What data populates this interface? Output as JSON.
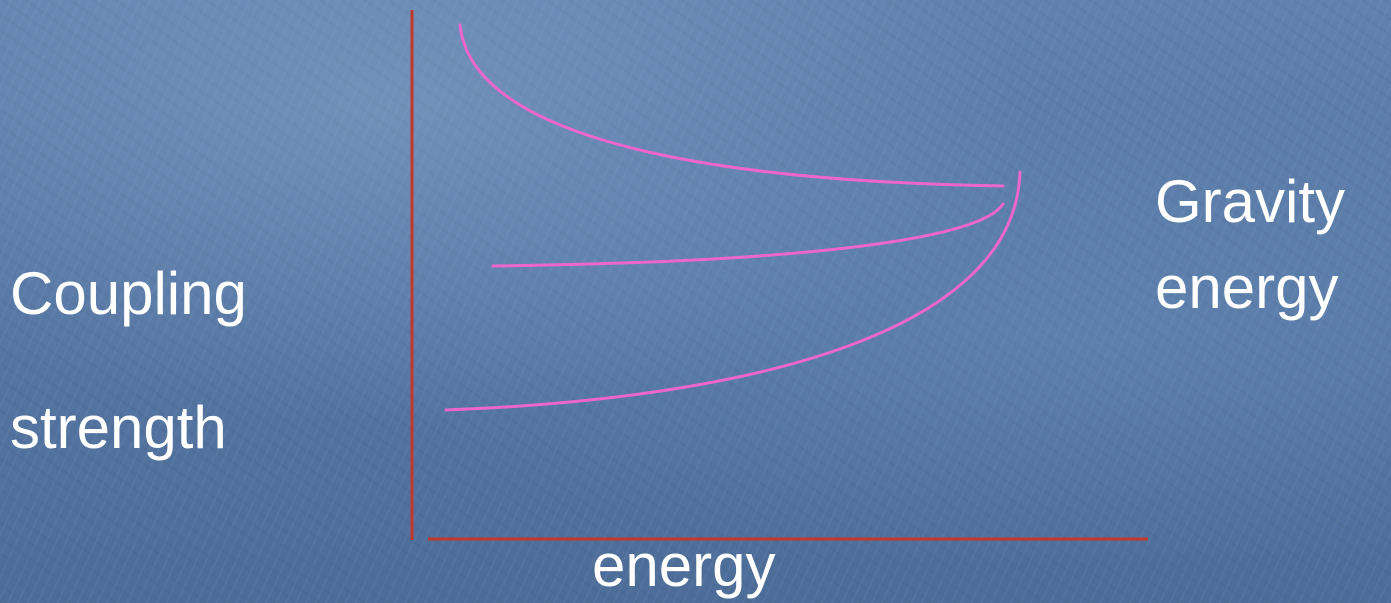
{
  "labels": {
    "coupling": "Coupling",
    "strength": "strength",
    "x_axis": "energy",
    "gravity": "Gravity",
    "gravity_energy": "energy"
  },
  "colors": {
    "axis": "#c0392b",
    "curve": "#ee66cc",
    "text": "#ffffff",
    "background": "#5677a4"
  }
}
